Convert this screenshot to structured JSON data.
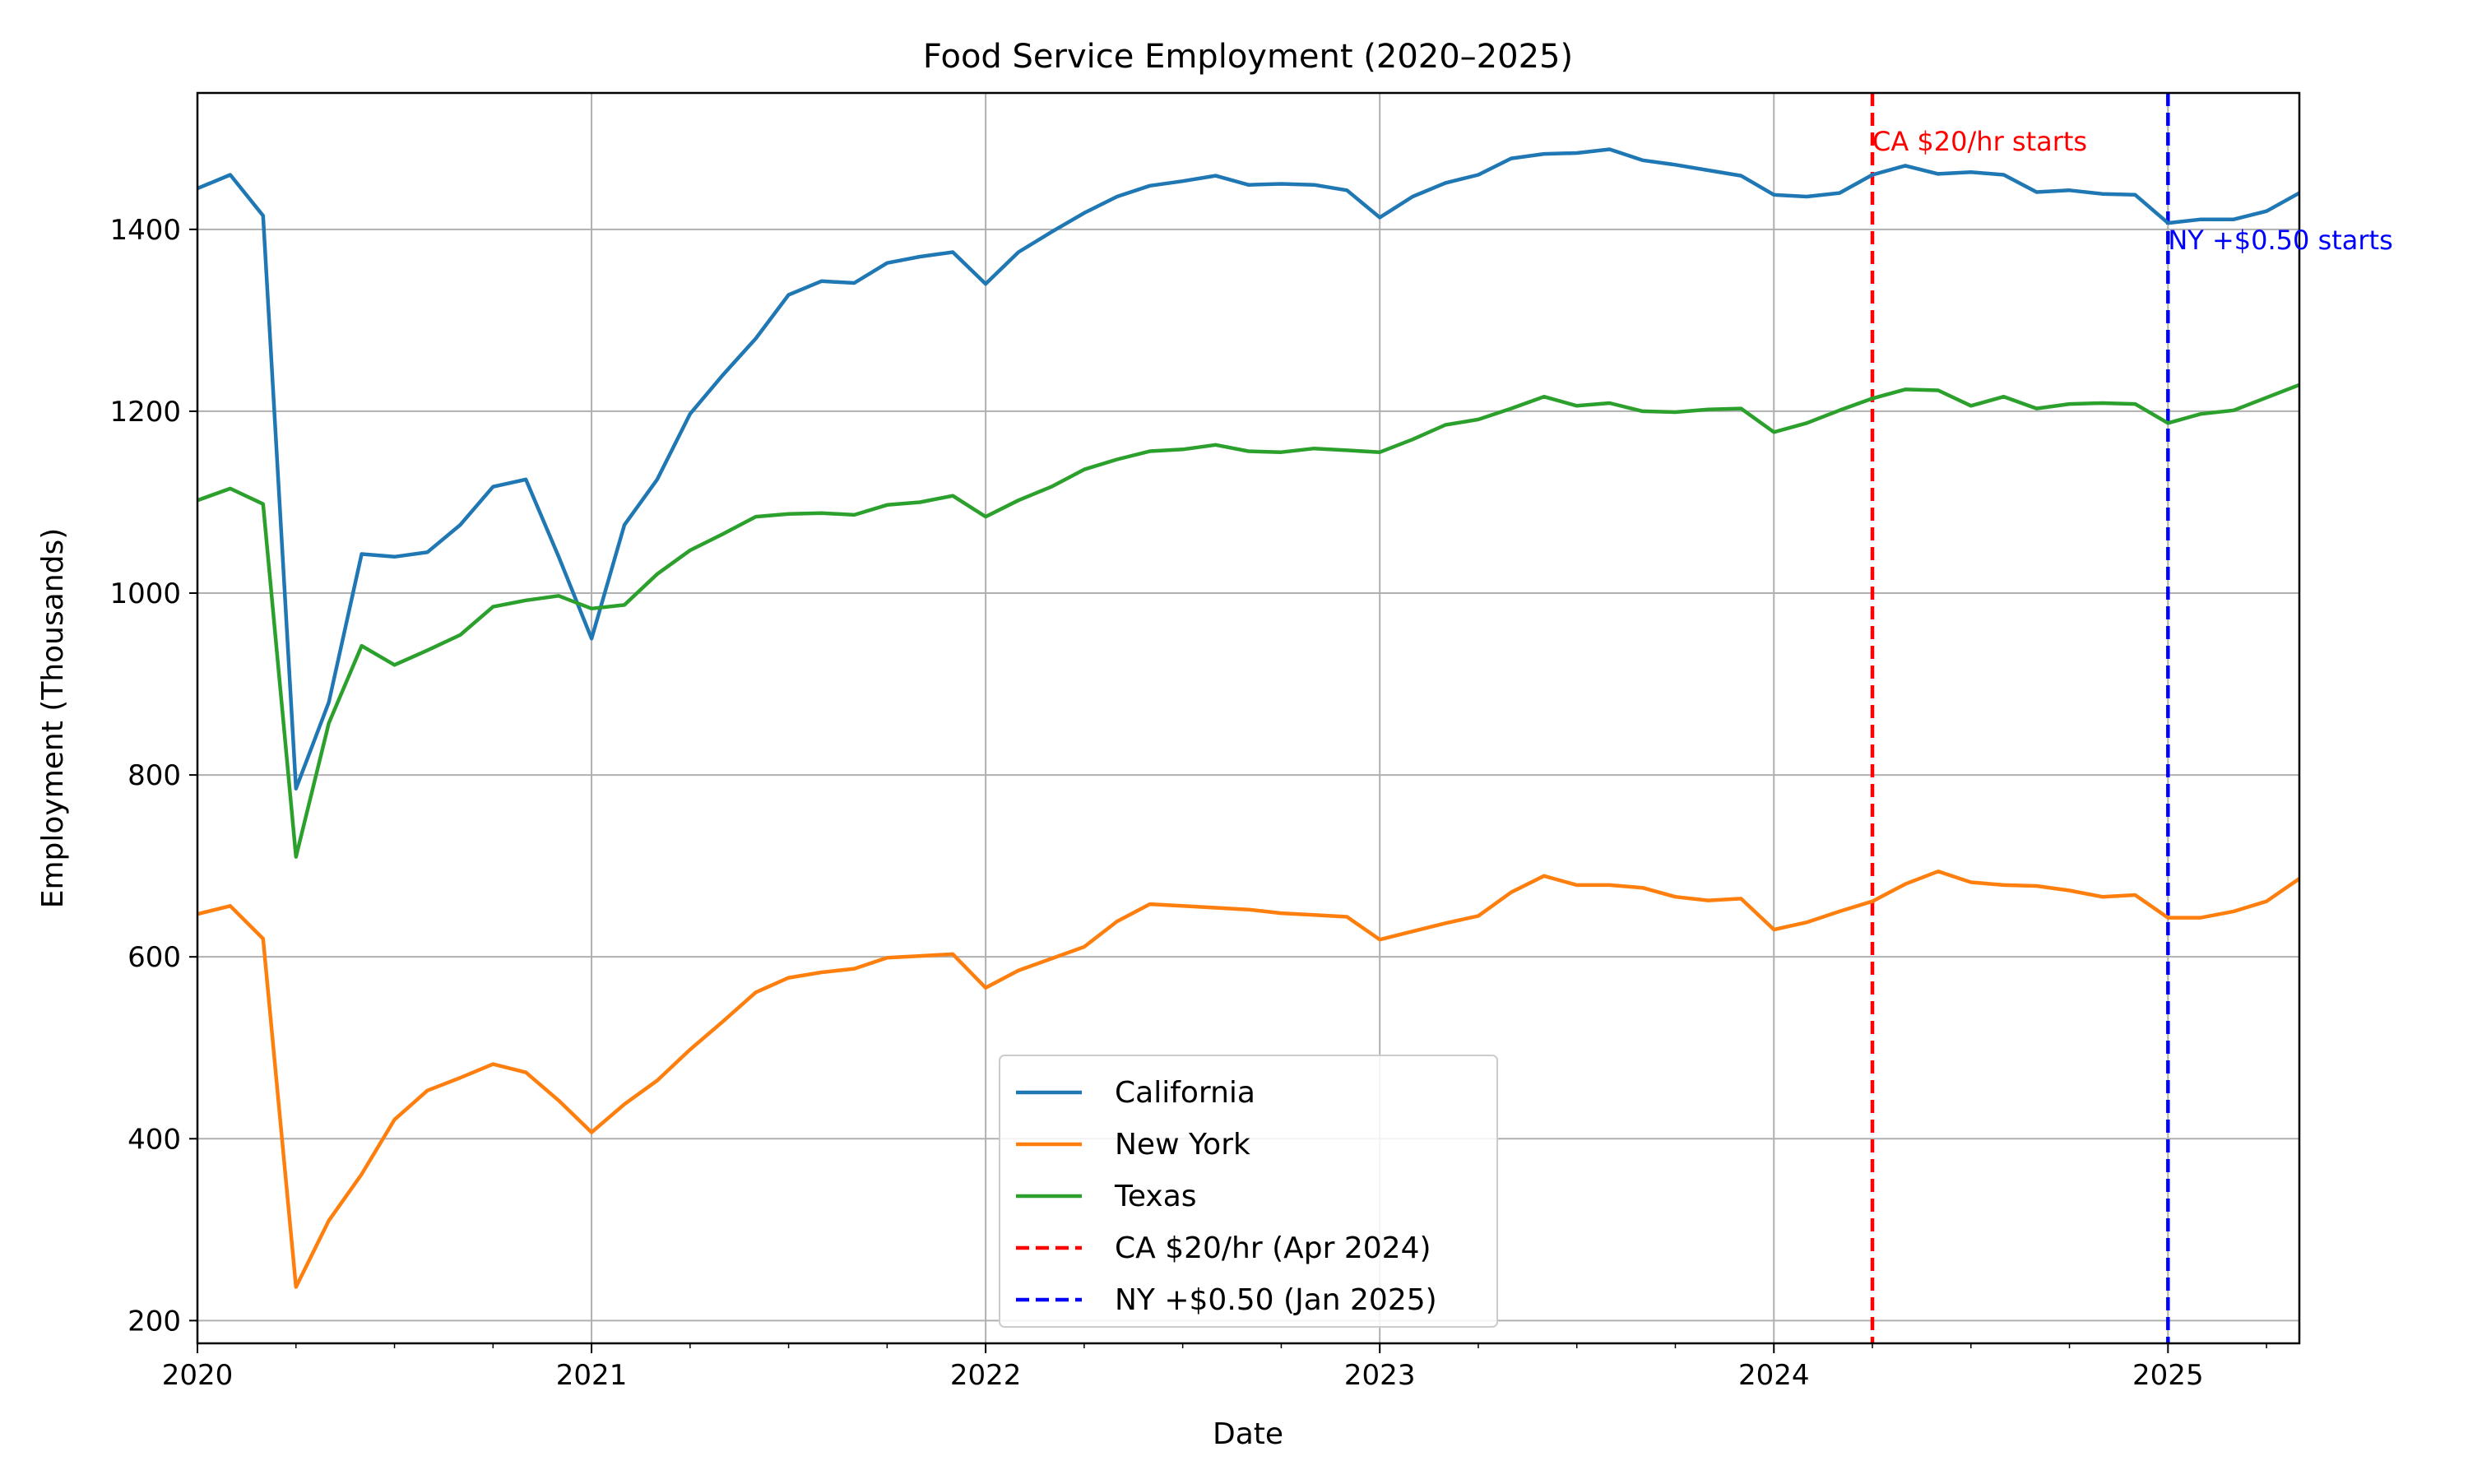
{
  "chart_data": {
    "type": "line",
    "title": "Food Service Employment (2020–2025)",
    "xlabel": "Date",
    "ylabel": "Employment (Thousands)",
    "xlim": [
      "2020-01",
      "2025-05"
    ],
    "ylim": [
      175,
      1550
    ],
    "x_ticks": [
      "2020",
      "2021",
      "2022",
      "2023",
      "2024",
      "2025"
    ],
    "y_ticks": [
      200,
      400,
      600,
      800,
      1000,
      1200,
      1400
    ],
    "grid": true,
    "legend_position": "lower-center",
    "x": [
      "2020-01",
      "2020-02",
      "2020-03",
      "2020-04",
      "2020-05",
      "2020-06",
      "2020-07",
      "2020-08",
      "2020-09",
      "2020-10",
      "2020-11",
      "2020-12",
      "2021-01",
      "2021-02",
      "2021-03",
      "2021-04",
      "2021-05",
      "2021-06",
      "2021-07",
      "2021-08",
      "2021-09",
      "2021-10",
      "2021-11",
      "2021-12",
      "2022-01",
      "2022-02",
      "2022-03",
      "2022-04",
      "2022-05",
      "2022-06",
      "2022-07",
      "2022-08",
      "2022-09",
      "2022-10",
      "2022-11",
      "2022-12",
      "2023-01",
      "2023-02",
      "2023-03",
      "2023-04",
      "2023-05",
      "2023-06",
      "2023-07",
      "2023-08",
      "2023-09",
      "2023-10",
      "2023-11",
      "2023-12",
      "2024-01",
      "2024-02",
      "2024-03",
      "2024-04",
      "2024-05",
      "2024-06",
      "2024-07",
      "2024-08",
      "2024-09",
      "2024-10",
      "2024-11",
      "2024-12",
      "2025-01",
      "2025-02",
      "2025-03",
      "2025-04",
      "2025-05"
    ],
    "series": [
      {
        "name": "California",
        "color": "#1f77b4",
        "values": [
          1445,
          1460,
          1415,
          785,
          880,
          1043,
          1040,
          1045,
          1075,
          1117,
          1125,
          1040,
          950,
          1075,
          1125,
          1197,
          1240,
          1280,
          1328,
          1343,
          1341,
          1363,
          1370,
          1375,
          1340,
          1375,
          1397,
          1418,
          1436,
          1448,
          1453,
          1459,
          1449,
          1450,
          1449,
          1443,
          1413,
          1436,
          1451,
          1460,
          1478,
          1483,
          1484,
          1488,
          1476,
          1471,
          1465,
          1459,
          1438,
          1436,
          1440,
          1460,
          1470,
          1461,
          1463,
          1460,
          1441,
          1443,
          1439,
          1438,
          1407,
          1411,
          1411,
          1420,
          1440
        ]
      },
      {
        "name": "New York",
        "color": "#ff7f0e",
        "values": [
          647,
          656,
          620,
          237,
          310,
          361,
          421,
          453,
          467,
          482,
          473,
          442,
          407,
          438,
          464,
          498,
          529,
          561,
          577,
          583,
          587,
          599,
          601,
          603,
          566,
          585,
          598,
          611,
          639,
          658,
          656,
          654,
          652,
          648,
          646,
          644,
          619,
          628,
          637,
          645,
          671,
          689,
          679,
          679,
          676,
          666,
          662,
          664,
          630,
          638,
          650,
          661,
          680,
          694,
          682,
          679,
          678,
          673,
          666,
          668,
          643,
          643,
          650,
          661,
          686
        ]
      },
      {
        "name": "Texas",
        "color": "#2ca02c",
        "values": [
          1102,
          1115,
          1098,
          710,
          857,
          942,
          921,
          937,
          954,
          985,
          992,
          997,
          983,
          987,
          1021,
          1047,
          1065,
          1084,
          1087,
          1088,
          1086,
          1097,
          1100,
          1107,
          1084,
          1102,
          1117,
          1136,
          1147,
          1156,
          1158,
          1163,
          1156,
          1155,
          1159,
          1157,
          1155,
          1169,
          1185,
          1191,
          1203,
          1216,
          1206,
          1209,
          1200,
          1199,
          1202,
          1203,
          1177,
          1187,
          1201,
          1214,
          1224,
          1223,
          1206,
          1216,
          1203,
          1208,
          1209,
          1208,
          1187,
          1197,
          1201,
          1215,
          1229
        ]
      }
    ],
    "vlines": [
      {
        "x": "2024-04",
        "color": "#ff0000",
        "label": "CA $20/hr (Apr 2024)",
        "annotation": "CA $20/hr starts"
      },
      {
        "x": "2025-01",
        "color": "#0000ff",
        "label": "NY +$0.50 (Jan 2025)",
        "annotation": "NY +$0.50 starts"
      }
    ]
  }
}
